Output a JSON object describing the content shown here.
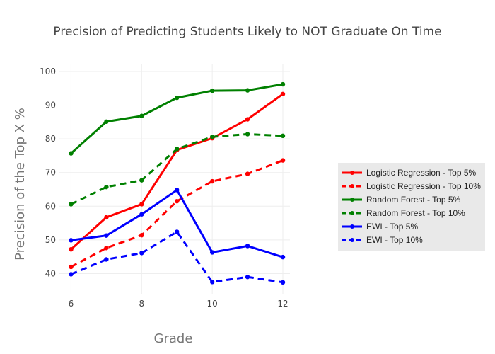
{
  "chart_data": {
    "type": "line",
    "title": "Precision of Predicting Students Likely to NOT Graduate On Time",
    "xlabel": "Grade",
    "ylabel": "Precision of the Top X %",
    "x": [
      6,
      7,
      8,
      9,
      10,
      11,
      12
    ],
    "xticks": [
      6,
      8,
      10,
      12
    ],
    "yticks": [
      40,
      50,
      60,
      70,
      80,
      90,
      100
    ],
    "xlim": [
      5.65,
      12.2
    ],
    "ylim": [
      34,
      102.3
    ],
    "grid": true,
    "legend_position": "right",
    "series": [
      {
        "name": "Logistic Regression - Top 5%",
        "color": "#ff0000",
        "dash": false,
        "values": [
          47.2,
          56.7,
          60.6,
          76.7,
          80.2,
          85.8,
          93.3
        ]
      },
      {
        "name": "Logistic Regression - Top 10%",
        "color": "#ff0000",
        "dash": true,
        "values": [
          42.0,
          47.6,
          51.4,
          61.5,
          67.4,
          69.6,
          73.6
        ]
      },
      {
        "name": "Random Forest - Top 5%",
        "color": "#008000",
        "dash": false,
        "values": [
          75.7,
          85.1,
          86.8,
          92.2,
          94.3,
          94.4,
          96.2
        ]
      },
      {
        "name": "Random Forest - Top 10%",
        "color": "#008000",
        "dash": true,
        "values": [
          60.6,
          65.7,
          67.7,
          77.0,
          80.6,
          81.4,
          80.9
        ]
      },
      {
        "name": "EWI - Top 5%",
        "color": "#0000ff",
        "dash": false,
        "values": [
          49.9,
          51.3,
          57.6,
          64.8,
          46.3,
          48.2,
          44.9
        ]
      },
      {
        "name": "EWI - Top 10%",
        "color": "#0000ff",
        "dash": true,
        "values": [
          39.8,
          44.2,
          46.1,
          52.4,
          37.5,
          39.0,
          37.4
        ]
      }
    ]
  }
}
